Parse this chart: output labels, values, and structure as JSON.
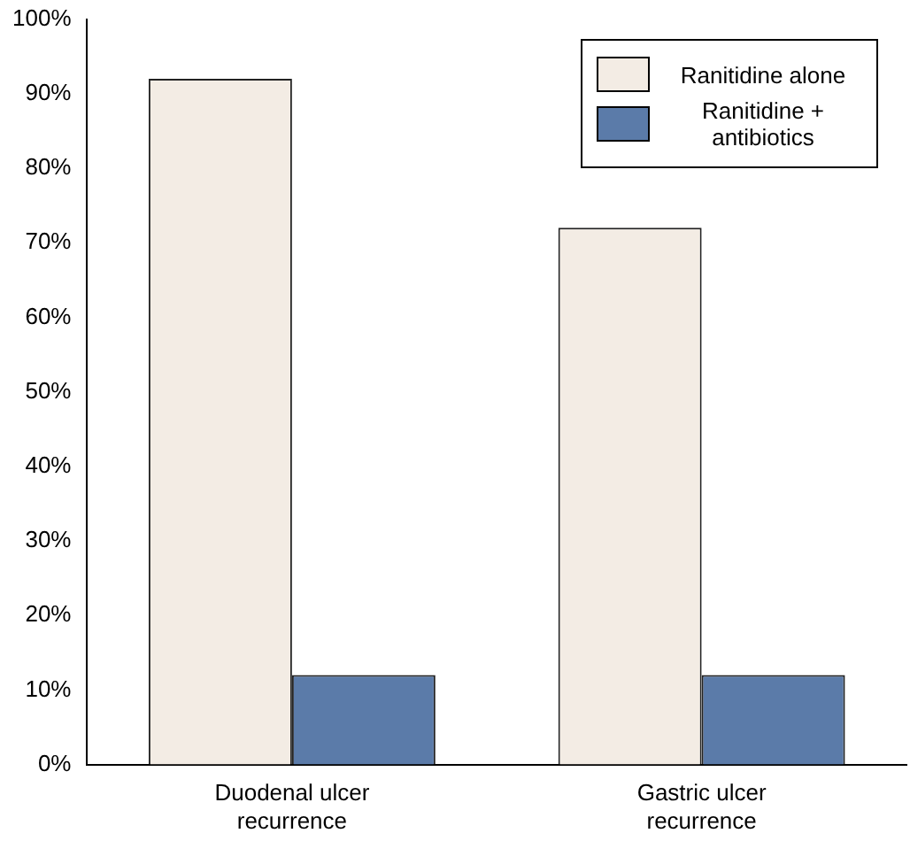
{
  "chart_data": {
    "type": "bar",
    "categories": [
      "Duodenal ulcer recurrence",
      "Gastric ulcer recurrence"
    ],
    "series": [
      {
        "name": "Ranitidine alone",
        "color": "#f3ece4",
        "values": [
          92,
          72
        ]
      },
      {
        "name": "Ranitidine + antibiotics",
        "color": "#5b7ba9",
        "values": [
          12,
          12
        ]
      }
    ],
    "ylim": [
      0,
      100
    ],
    "yticks": [
      {
        "value": 0,
        "label": "0%"
      },
      {
        "value": 10,
        "label": "10%"
      },
      {
        "value": 20,
        "label": "20%"
      },
      {
        "value": 30,
        "label": "30%"
      },
      {
        "value": 40,
        "label": "40%"
      },
      {
        "value": 50,
        "label": "50%"
      },
      {
        "value": 60,
        "label": "60%"
      },
      {
        "value": 70,
        "label": "70%"
      },
      {
        "value": 80,
        "label": "80%"
      },
      {
        "value": 90,
        "label": "90%"
      },
      {
        "value": 100,
        "label": "100%"
      }
    ],
    "grid": false,
    "legend": "top right"
  }
}
